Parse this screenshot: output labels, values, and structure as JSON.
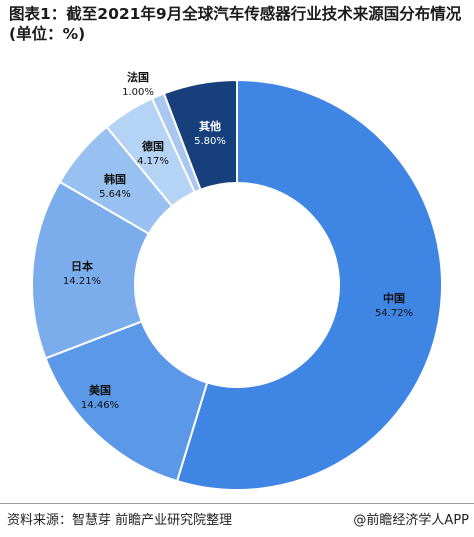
{
  "title": "图表1：截至2021年9月全球汽车传感器行业技术来源国分布情况(单位：%)",
  "chart_data": {
    "type": "pie",
    "donut": true,
    "series": [
      {
        "name": "中国",
        "value": 54.72,
        "value_label": "54.72%",
        "color": "#3f86e4",
        "text_color": "#111111"
      },
      {
        "name": "美国",
        "value": 14.46,
        "value_label": "14.46%",
        "color": "#5b99e8",
        "text_color": "#111111"
      },
      {
        "name": "日本",
        "value": 14.21,
        "value_label": "14.21%",
        "color": "#7bacec",
        "text_color": "#111111"
      },
      {
        "name": "韩国",
        "value": 5.64,
        "value_label": "5.64%",
        "color": "#98c0f0",
        "text_color": "#111111"
      },
      {
        "name": "德国",
        "value": 4.17,
        "value_label": "4.17%",
        "color": "#b5d3f4",
        "text_color": "#111111"
      },
      {
        "name": "法国",
        "value": 1.0,
        "value_label": "1.00%",
        "color": "#a9c8ef",
        "text_color": "#111111"
      },
      {
        "name": "其他",
        "value": 5.8,
        "value_label": "5.80%",
        "color": "#163f7c",
        "text_color": "#ffffff"
      }
    ]
  },
  "footer": {
    "source": "资料来源：智慧芽 前瞻产业研究院整理",
    "brand": "@前瞻经济学人APP"
  }
}
